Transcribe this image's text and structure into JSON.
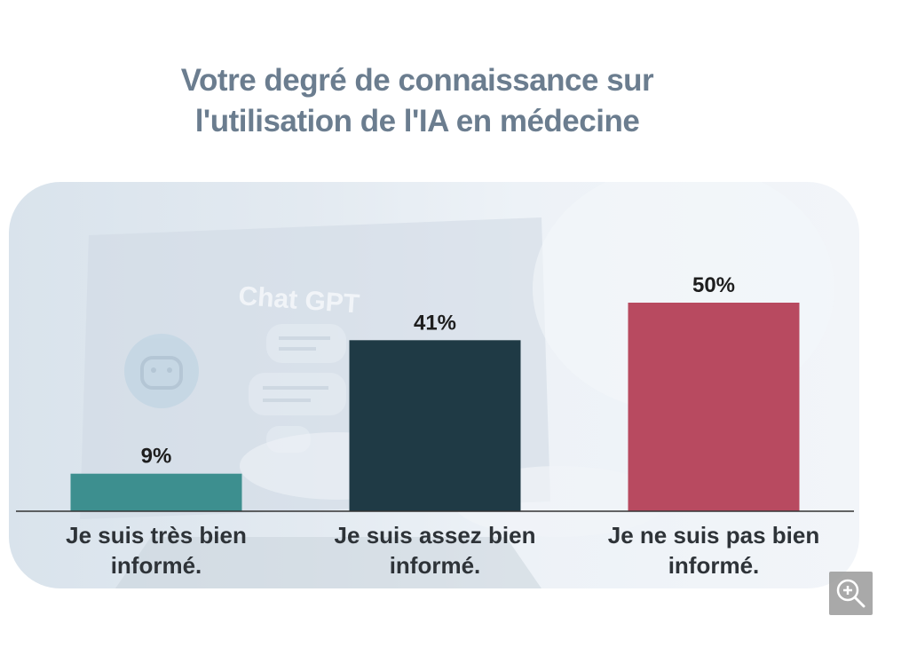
{
  "chart_data": {
    "type": "bar",
    "title": [
      "Votre degré de connaissance sur",
      "l'utilisation de l'IA en médecine"
    ],
    "categories": [
      [
        "Je suis très bien",
        "informé."
      ],
      [
        "Je suis assez bien",
        "informé."
      ],
      [
        "Je ne suis pas bien",
        "informé."
      ]
    ],
    "values": [
      9,
      41,
      50
    ],
    "value_labels": [
      "9%",
      "41%",
      "50%"
    ],
    "colors": [
      "#3d8f8f",
      "#1f3a45",
      "#b84a60"
    ],
    "ylim": [
      0,
      100
    ],
    "grid": false
  },
  "background": {
    "chat_label": "Chat GPT"
  },
  "controls": {
    "zoom_icon": "zoom-in-icon"
  }
}
